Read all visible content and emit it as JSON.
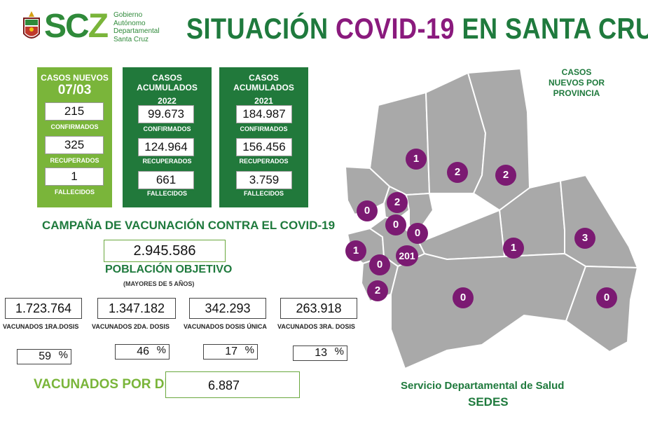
{
  "header": {
    "logo_text_1": "SC",
    "logo_text_2": "Z",
    "gov_lines": [
      "Gobierno",
      "Autónomo",
      "Departamental",
      "Santa Cruz"
    ],
    "title_part1": "SITUACIÓN ",
    "title_highlight": "COVID-19",
    "title_part2": " EN SANTA CRUZ"
  },
  "new_cases": {
    "heading": "CASOS NUEVOS",
    "date": "07/03",
    "confirmed": "215",
    "confirmed_label": "CONFIRMADOS",
    "recovered": "325",
    "recovered_label": "RECUPERADOS",
    "deaths": "1",
    "deaths_label": "FALLECIDOS"
  },
  "accum_2022": {
    "heading": "CASOS ACUMULADOS",
    "year": "2022",
    "confirmed": "99.673",
    "confirmed_label": "CONFIRMADOS",
    "recovered": "124.964",
    "recovered_label": "RECUPERADOS",
    "deaths": "661",
    "deaths_label": "FALLECIDOS"
  },
  "accum_2021": {
    "heading": "CASOS ACUMULADOS",
    "year": "2021",
    "confirmed": "184.987",
    "confirmed_label": "CONFIRMADOS",
    "recovered": "156.456",
    "recovered_label": "RECUPERADOS",
    "deaths": "3.759",
    "deaths_label": "FALLECIDOS"
  },
  "vaccination": {
    "title": "CAMPAÑA DE VACUNACIÓN CONTRA EL COVID-19",
    "target_population": "2.945.586",
    "target_label": "POBLACIÓN OBJETIVO",
    "target_sub": "(MAYORES DE 5 AÑOS)",
    "doses": [
      {
        "value": "1.723.764",
        "label": "VACUNADOS 1RA.DOSIS",
        "pct": "59",
        "pct_sign": "%"
      },
      {
        "value": "1.347.182",
        "label": "VACUNADOS 2DA. DOSIS",
        "pct": "46",
        "pct_sign": "%"
      },
      {
        "value": "342.293",
        "label": "VACUNADOS DOSIS ÚNICA",
        "pct": "17",
        "pct_sign": "%"
      },
      {
        "value": "263.918",
        "label": "VACUNADOS 3RA. DOSIS",
        "pct": "13",
        "pct_sign": "%"
      }
    ],
    "daily_label": "VACUNADOS POR DÍA",
    "daily_value": "6.887"
  },
  "map": {
    "caption": "CASOS NUEVOS POR PROVINCIA",
    "province_counts": [
      "1",
      "2",
      "2",
      "2",
      "0",
      "0",
      "0",
      "3",
      "1",
      "201",
      "1",
      "0",
      "0",
      "2",
      "0"
    ]
  },
  "footer": {
    "line1": "Servicio Departamental de Salud",
    "line2": "SEDES"
  },
  "colors": {
    "brand_green": "#1f7a3d",
    "light_green": "#7ab53a",
    "panel_dark_green": "#21793b",
    "highlight_purple": "#8a1a7d",
    "map_gray": "#a9a9a9",
    "marker_purple": "#7b1a72"
  }
}
